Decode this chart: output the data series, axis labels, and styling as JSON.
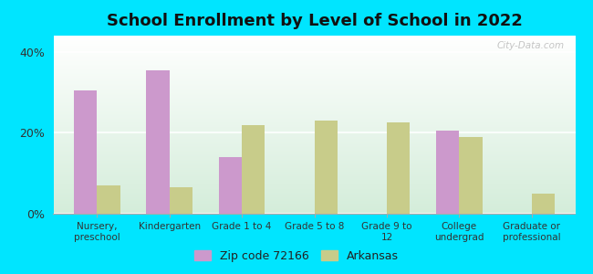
{
  "title": "School Enrollment by Level of School in 2022",
  "categories": [
    "Nursery,\npreschool",
    "Kindergarten",
    "Grade 1 to 4",
    "Grade 5 to 8",
    "Grade 9 to\n12",
    "College\nundergrad",
    "Graduate or\nprofessional"
  ],
  "zip_values": [
    30.5,
    35.5,
    14.0,
    0.0,
    0.0,
    20.5,
    0.0
  ],
  "ar_values": [
    7.0,
    6.5,
    22.0,
    23.0,
    22.5,
    19.0,
    5.0
  ],
  "zip_color": "#cc99cc",
  "ar_color": "#c8cc8a",
  "background_outer": "#00e5ff",
  "background_inner_bottom": "#d4edda",
  "background_inner_top": "#f5fff5",
  "ylim": [
    0,
    44
  ],
  "yticks": [
    0,
    20,
    40
  ],
  "ytick_labels": [
    "0%",
    "20%",
    "40%"
  ],
  "legend_zip": "Zip code 72166",
  "legend_ar": "Arkansas",
  "watermark": "City-Data.com",
  "bar_width": 0.32
}
